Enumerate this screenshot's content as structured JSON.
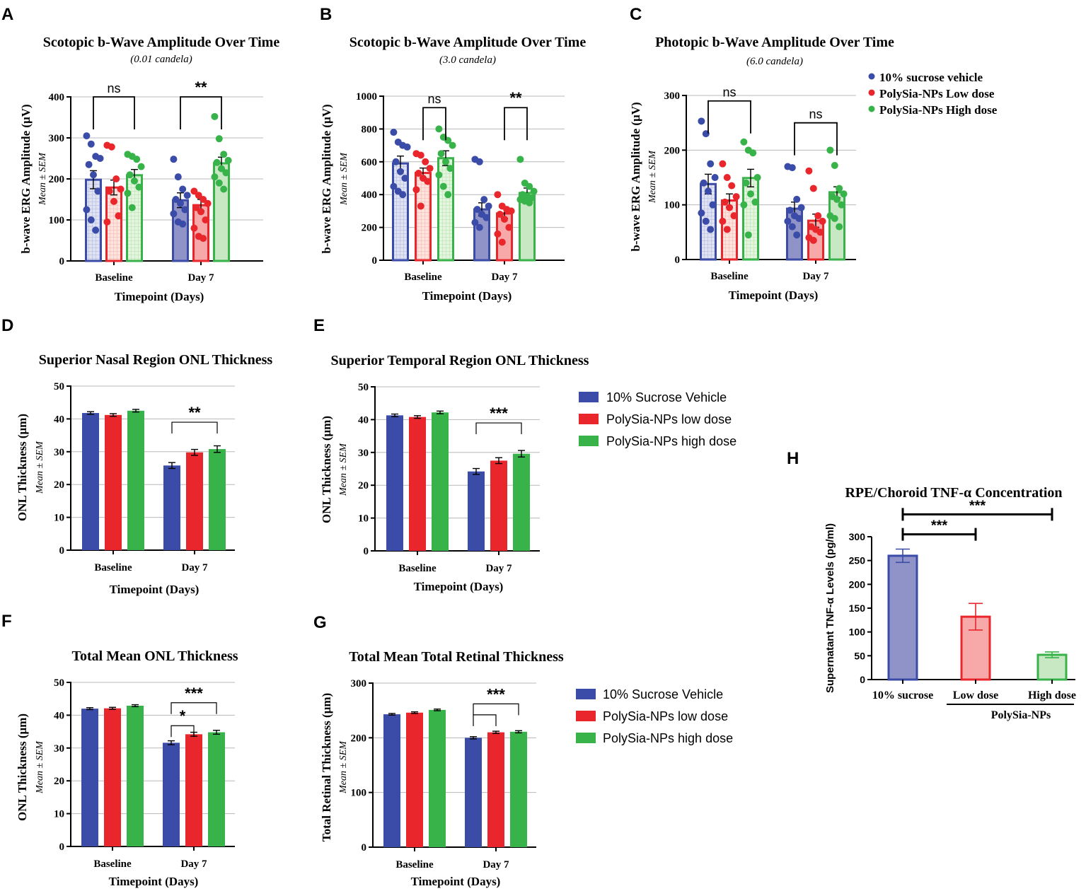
{
  "colors": {
    "blue": "#3a4ba8",
    "red": "#e8262b",
    "green": "#37b34a",
    "blueLight": "#8f93c8",
    "redLight": "#f7a8a8",
    "greenLight": "#c7e8c2",
    "grid": "#b8b8b8",
    "axis": "#000000"
  },
  "legends": {
    "abc": [
      "10% sucrose vehicle",
      "PolySia-NPs Low dose",
      "PolySia-NPs High dose"
    ],
    "de": [
      "10% Sucrose Vehicle",
      "PolySia-NPs low dose",
      "PolySia-NPs high dose"
    ],
    "fg": [
      "10% Sucrose Vehicle",
      "PolySia-NPs low dose",
      "PolySia-NPs high dose"
    ]
  },
  "chart_data": [
    {
      "id": "A",
      "type": "bar",
      "style": "scatter-bar",
      "title": "Scotopic b-Wave Amplitude Over Time",
      "subtitle": "(0.01 candela)",
      "ylabel": "b-wave ERG Amplitude (μV)",
      "ylabel2": "Mean ± SEM",
      "xlabel": "Timepoint (Days)",
      "categories": [
        "Baseline",
        "Day 7"
      ],
      "ylim": [
        0,
        400
      ],
      "yticks": [
        0,
        100,
        200,
        300,
        400
      ],
      "series": [
        {
          "name": "10% sucrose vehicle",
          "values": [
            198,
            148
          ],
          "sem": [
            22,
            18
          ],
          "points": [
            [
              305,
              285,
              255,
              250,
              235,
              210,
              170,
              125,
              100,
              75
            ],
            [
              248,
              205,
              175,
              160,
              150,
              140,
              125,
              115,
              95,
              90
            ]
          ]
        },
        {
          "name": "PolySia-NPs Low dose",
          "values": [
            179,
            136
          ],
          "sem": [
            18,
            14
          ],
          "points": [
            [
              282,
              278,
              200,
              175,
              170,
              145,
              110,
              95
            ],
            [
              170,
              160,
              150,
              140,
              130,
              120,
              100,
              80,
              60,
              55
            ]
          ]
        },
        {
          "name": "PolySia-NPs High dose",
          "values": [
            209,
            238
          ],
          "sem": [
            14,
            15
          ],
          "points": [
            [
              260,
              255,
              248,
              230,
              210,
              195,
              180,
              165,
              130
            ],
            [
              352,
              298,
              260,
              245,
              240,
              225,
              215,
              205,
              190,
              175
            ]
          ]
        }
      ],
      "annotations": [
        {
          "cat": 0,
          "from": 0,
          "to": 2,
          "label": "ns",
          "y": 400
        },
        {
          "cat": 1,
          "from": 0,
          "to": 2,
          "label": "**",
          "y": 400
        }
      ]
    },
    {
      "id": "B",
      "type": "bar",
      "style": "scatter-bar",
      "title": "Scotopic b-Wave Amplitude Over Time",
      "subtitle": "(3.0 candela)",
      "ylabel": "b-wave ERG Amplitude (μV)",
      "ylabel2": "Mean ± SEM",
      "xlabel": "Timepoint (Days)",
      "categories": [
        "Baseline",
        "Day 7"
      ],
      "ylim": [
        0,
        1000
      ],
      "yticks": [
        0,
        200,
        400,
        600,
        800,
        1000
      ],
      "series": [
        {
          "name": "10% sucrose vehicle",
          "values": [
            590,
            310
          ],
          "sem": [
            45,
            40
          ],
          "points": [
            [
              780,
              720,
              700,
              690,
              600,
              540,
              500,
              450,
              420,
              400
            ],
            [
              615,
              600,
              370,
              330,
              310,
              280,
              260,
              230,
              200
            ]
          ]
        },
        {
          "name": "PolySia-NPs Low dose",
          "values": [
            532,
            285
          ],
          "sem": [
            30,
            30
          ],
          "points": [
            [
              650,
              640,
              600,
              560,
              530,
              500,
              480,
              430,
              330
            ],
            [
              400,
              330,
              310,
              300,
              280,
              250,
              200,
              160,
              110
            ]
          ]
        },
        {
          "name": "PolySia-NPs High dose",
          "values": [
            622,
            410
          ],
          "sem": [
            45,
            30
          ],
          "points": [
            [
              800,
              750,
              730,
              700,
              650,
              600,
              560,
              520,
              450,
              400
            ],
            [
              615,
              470,
              450,
              420,
              400,
              390,
              380,
              370,
              360,
              350
            ]
          ]
        }
      ],
      "annotations": [
        {
          "cat": 0,
          "from": 1,
          "to": 2,
          "label": "ns",
          "y": 930
        },
        {
          "cat": 1,
          "from": 1,
          "to": 2,
          "label": "**",
          "y": 930
        }
      ]
    },
    {
      "id": "C",
      "type": "bar",
      "style": "scatter-bar",
      "title": "Photopic b-Wave Amplitude Over Time",
      "subtitle": "(6.0 candela)",
      "ylabel": "b-wave ERG Amplitude (μV)",
      "ylabel2": "Mean ± SEM",
      "xlabel": "Timepoint (Days)",
      "categories": [
        "Baseline",
        "Day 7"
      ],
      "ylim": [
        0,
        300
      ],
      "yticks": [
        0,
        100,
        200,
        300
      ],
      "series": [
        {
          "name": "10% sucrose vehicle",
          "values": [
            138,
            93
          ],
          "sem": [
            18,
            12
          ],
          "points": [
            [
              253,
              230,
              175,
              150,
              140,
              125,
              100,
              85,
              70,
              55
            ],
            [
              170,
              168,
              110,
              95,
              90,
              80,
              75,
              70,
              60,
              45
            ]
          ]
        },
        {
          "name": "PolySia-NPs Low dose",
          "values": [
            108,
            71
          ],
          "sem": [
            12,
            12
          ],
          "points": [
            [
              175,
              150,
              135,
              115,
              105,
              95,
              80,
              70,
              55
            ],
            [
              162,
              130,
              80,
              70,
              60,
              55,
              50,
              40,
              35
            ]
          ]
        },
        {
          "name": "PolySia-NPs High dose",
          "values": [
            149,
            123
          ],
          "sem": [
            16,
            10
          ],
          "points": [
            [
              215,
              200,
              195,
              150,
              140,
              120,
              105,
              100,
              45
            ],
            [
              200,
              172,
              130,
              120,
              115,
              110,
              100,
              80,
              75,
              60
            ]
          ]
        }
      ],
      "annotations": [
        {
          "cat": 0,
          "from": 0,
          "to": 2,
          "label": "ns",
          "y": 290
        },
        {
          "cat": 1,
          "from": 0,
          "to": 2,
          "label": "ns",
          "y": 250
        }
      ]
    },
    {
      "id": "D",
      "type": "bar",
      "style": "solid",
      "title": "Superior Nasal Region ONL Thickness",
      "ylabel": "ONL Thickness (μm)",
      "ylabel2": "Mean ± SEM",
      "xlabel": "Timepoint (Days)",
      "categories": [
        "Baseline",
        "Day 7"
      ],
      "ylim": [
        0,
        50
      ],
      "yticks": [
        0,
        10,
        20,
        30,
        40,
        50
      ],
      "series": [
        {
          "name": "10% Sucrose Vehicle",
          "values": [
            41.8,
            25.8
          ],
          "sem": [
            0.4,
            0.9
          ]
        },
        {
          "name": "PolySia-NPs low dose",
          "values": [
            41.2,
            29.8
          ],
          "sem": [
            0.4,
            0.9
          ]
        },
        {
          "name": "PolySia-NPs high dose",
          "values": [
            42.5,
            30.8
          ],
          "sem": [
            0.4,
            1.0
          ]
        }
      ],
      "annotations": [
        {
          "cat": 1,
          "from": 0,
          "to": 2,
          "label": "**",
          "y": 39
        }
      ]
    },
    {
      "id": "E",
      "type": "bar",
      "style": "solid",
      "title": "Superior Temporal Region ONL Thickness",
      "ylabel": "ONL Thickness (μm)",
      "ylabel2": "Mean ± SEM",
      "xlabel": "Timepoint (Days)",
      "categories": [
        "Baseline",
        "Day 7"
      ],
      "ylim": [
        0,
        50
      ],
      "yticks": [
        0,
        10,
        20,
        30,
        40,
        50
      ],
      "series": [
        {
          "name": "10% Sucrose Vehicle",
          "values": [
            41.3,
            24.2
          ],
          "sem": [
            0.4,
            0.9
          ]
        },
        {
          "name": "PolySia-NPs low dose",
          "values": [
            40.8,
            27.5
          ],
          "sem": [
            0.4,
            0.9
          ]
        },
        {
          "name": "PolySia-NPs high dose",
          "values": [
            42.2,
            29.6
          ],
          "sem": [
            0.4,
            1.0
          ]
        }
      ],
      "annotations": [
        {
          "cat": 1,
          "from": 0,
          "to": 2,
          "label": "***",
          "y": 39
        }
      ]
    },
    {
      "id": "F",
      "type": "bar",
      "style": "solid",
      "title": "Total Mean ONL Thickness",
      "ylabel": "ONL Thickness (μm)",
      "ylabel2": "Mean ± SEM",
      "xlabel": "Timepoint (Days)",
      "categories": [
        "Baseline",
        "Day 7"
      ],
      "ylim": [
        0,
        50
      ],
      "yticks": [
        0,
        10,
        20,
        30,
        40,
        50
      ],
      "series": [
        {
          "name": "10% Sucrose Vehicle",
          "values": [
            42.0,
            31.6
          ],
          "sem": [
            0.3,
            0.6
          ]
        },
        {
          "name": "PolySia-NPs low dose",
          "values": [
            42.1,
            34.2
          ],
          "sem": [
            0.3,
            0.6
          ]
        },
        {
          "name": "PolySia-NPs high dose",
          "values": [
            42.9,
            34.8
          ],
          "sem": [
            0.3,
            0.6
          ]
        }
      ],
      "annotations": [
        {
          "cat": 1,
          "from": 0,
          "to": 1,
          "label": "*",
          "y": 36.8
        },
        {
          "cat": 1,
          "from": 0,
          "to": 2,
          "label": "***",
          "y": 43.8
        }
      ]
    },
    {
      "id": "G",
      "type": "bar",
      "style": "solid",
      "title": "Total Mean Total Retinal Thickness",
      "ylabel": "Total Retinal Thickness (μm)",
      "ylabel2": "Mean ± SEM",
      "xlabel": "Timepoint (Days)",
      "categories": [
        "Baseline",
        "Day 7"
      ],
      "ylim": [
        0,
        300
      ],
      "yticks": [
        0,
        100,
        200,
        300
      ],
      "series": [
        {
          "name": "10% Sucrose Vehicle",
          "values": [
            243,
            200
          ],
          "sem": [
            1.5,
            2
          ]
        },
        {
          "name": "PolySia-NPs low dose",
          "values": [
            246,
            210
          ],
          "sem": [
            1.5,
            2
          ]
        },
        {
          "name": "PolySia-NPs high dose",
          "values": [
            251,
            211
          ],
          "sem": [
            1.5,
            2
          ]
        }
      ],
      "annotations": [
        {
          "cat": 1,
          "from": 0,
          "to": 1,
          "label": "",
          "y": 242
        },
        {
          "cat": 1,
          "from": 0,
          "to": 2,
          "label": "***",
          "y": 262
        }
      ]
    },
    {
      "id": "H",
      "type": "bar",
      "style": "outlined",
      "title": "RPE/Choroid TNF-α Concentration",
      "ylabel": "Supernatant TNF-α Levels (pg/ml)",
      "categories": [
        "10% sucrose",
        "Low dose",
        "High dose"
      ],
      "group_label": "PolySia-NPs",
      "ylim": [
        0,
        300
      ],
      "yticks": [
        0,
        50,
        100,
        150,
        200,
        250,
        300
      ],
      "values": [
        260,
        132,
        52
      ],
      "sem": [
        14,
        28,
        6
      ],
      "annotations": [
        {
          "from": 0,
          "to": 1,
          "label": "***",
          "y": 305
        },
        {
          "from": 0,
          "to": 2,
          "label": "***",
          "y": 347
        }
      ]
    }
  ]
}
